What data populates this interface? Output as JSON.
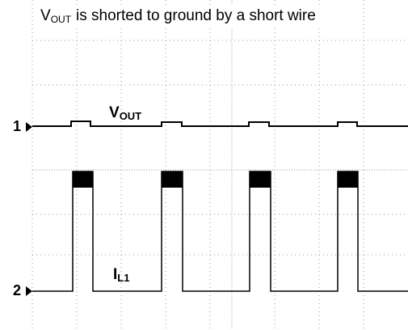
{
  "annotation": {
    "main": "V",
    "sub": "OUT",
    "rest": "is shorted to ground by a short wire"
  },
  "traces": [
    {
      "marker": "1",
      "label": "V",
      "sub": "OUT"
    },
    {
      "marker": "2",
      "label": "I",
      "sub": "L1"
    }
  ]
}
